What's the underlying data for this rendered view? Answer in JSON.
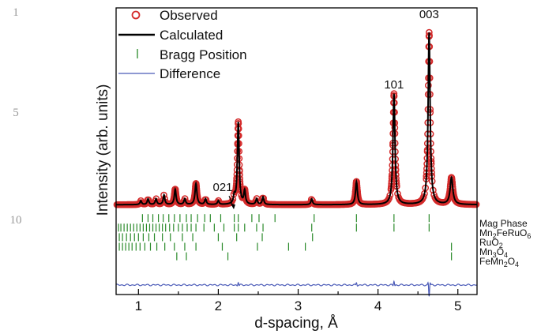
{
  "line_numbers": [
    {
      "label": "1"
    },
    {
      "label": "5"
    },
    {
      "label": "10"
    }
  ],
  "colors": {
    "observed": "#d42a2a",
    "calculated": "#000000",
    "bragg": "#2a8a2a",
    "difference": "#4b5bb8"
  },
  "chart_data": {
    "type": "line",
    "title": "",
    "xlabel": "d-spacing, Å",
    "ylabel": "Intensity (arb. units)",
    "xlim": [
      0.72,
      5.24
    ],
    "ylim": [
      -0.45,
      1.05
    ],
    "x_ticks": [
      {
        "value": 1,
        "label": "1"
      },
      {
        "value": 2,
        "label": "2"
      },
      {
        "value": 3,
        "label": "3"
      },
      {
        "value": 4,
        "label": "4"
      },
      {
        "value": 5,
        "label": "5"
      }
    ],
    "background": 0.02,
    "peaks": [
      {
        "x": 1.03,
        "h": 0.02,
        "w": 0.012
      },
      {
        "x": 1.12,
        "h": 0.03,
        "w": 0.012
      },
      {
        "x": 1.22,
        "h": 0.03,
        "w": 0.012
      },
      {
        "x": 1.32,
        "h": 0.05,
        "w": 0.012
      },
      {
        "x": 1.46,
        "h": 0.08,
        "w": 0.013
      },
      {
        "x": 1.58,
        "h": 0.03,
        "w": 0.012
      },
      {
        "x": 1.72,
        "h": 0.11,
        "w": 0.014
      },
      {
        "x": 1.84,
        "h": 0.03,
        "w": 0.012
      },
      {
        "x": 2.0,
        "h": 0.02,
        "w": 0.012
      },
      {
        "x": 2.2,
        "h": 0.04,
        "w": 0.012
      },
      {
        "x": 2.25,
        "h": 0.43,
        "w": 0.013
      },
      {
        "x": 2.33,
        "h": 0.07,
        "w": 0.012
      },
      {
        "x": 2.48,
        "h": 0.03,
        "w": 0.012
      },
      {
        "x": 2.56,
        "h": 0.04,
        "w": 0.012
      },
      {
        "x": 3.17,
        "h": 0.03,
        "w": 0.012
      },
      {
        "x": 3.73,
        "h": 0.12,
        "w": 0.014
      },
      {
        "x": 4.2,
        "h": 0.58,
        "w": 0.015
      },
      {
        "x": 4.64,
        "h": 0.9,
        "w": 0.015
      },
      {
        "x": 4.92,
        "h": 0.14,
        "w": 0.02
      }
    ],
    "series": [
      {
        "name": "Observed",
        "style": "circle",
        "color": "#d42a2a"
      },
      {
        "name": "Calculated",
        "style": "line",
        "color": "#000000"
      },
      {
        "name": "Bragg Position",
        "style": "tick",
        "color": "#2a8a2a"
      },
      {
        "name": "Difference",
        "style": "line",
        "color": "#4b5bb8"
      }
    ],
    "legend": "top-left",
    "grid": false,
    "phases": [
      {
        "label": "Mag Phase",
        "positions": [
          1.05,
          1.12,
          1.18,
          1.25,
          1.31,
          1.38,
          1.45,
          1.52,
          1.6,
          1.66,
          1.74,
          1.83,
          1.9,
          2.03,
          2.2,
          2.25,
          2.42,
          2.51,
          2.71,
          3.2,
          3.73,
          4.2,
          4.64
        ]
      },
      {
        "label": "Mn2FeRuO6",
        "label_main": "Mn",
        "label_parts": [
          {
            "t": "Mn",
            "sub": false
          },
          {
            "t": "2",
            "sub": true
          },
          {
            "t": "FeRuO",
            "sub": false
          },
          {
            "t": "6",
            "sub": true
          }
        ],
        "positions": [
          0.75,
          0.78,
          0.82,
          0.86,
          0.9,
          0.94,
          0.98,
          1.02,
          1.06,
          1.1,
          1.14,
          1.18,
          1.22,
          1.26,
          1.3,
          1.34,
          1.39,
          1.44,
          1.5,
          1.55,
          1.61,
          1.66,
          1.72,
          1.82,
          1.95,
          2.07,
          2.2,
          2.25,
          2.33,
          2.48,
          2.56,
          3.17,
          3.73,
          4.2,
          4.64
        ]
      },
      {
        "label": "RuO2",
        "label_parts": [
          {
            "t": "RuO",
            "sub": false
          },
          {
            "t": "2",
            "sub": true
          }
        ],
        "positions": [
          0.76,
          0.8,
          0.85,
          0.9,
          0.95,
          1.0,
          1.06,
          1.13,
          1.2,
          1.3,
          1.4,
          1.55,
          1.68,
          2.0,
          2.23,
          2.55,
          3.18
        ]
      },
      {
        "label": "Mn3O4",
        "label_parts": [
          {
            "t": "Mn",
            "sub": false
          },
          {
            "t": "3",
            "sub": true
          },
          {
            "t": "O",
            "sub": false
          },
          {
            "t": "4",
            "sub": true
          }
        ],
        "positions": [
          0.76,
          0.8,
          0.84,
          0.88,
          0.92,
          0.97,
          1.02,
          1.08,
          1.15,
          1.23,
          1.33,
          1.45,
          1.58,
          1.72,
          2.05,
          2.49,
          2.88,
          3.09,
          4.92
        ]
      },
      {
        "label": "FeMn2O4",
        "label_parts": [
          {
            "t": "FeMn",
            "sub": false
          },
          {
            "t": "2",
            "sub": true
          },
          {
            "t": "O",
            "sub": false
          },
          {
            "t": "4",
            "sub": true
          }
        ],
        "positions": [
          1.48,
          1.6,
          2.12,
          4.92
        ]
      }
    ],
    "difference_offset": -0.4,
    "difference_spikes": [
      {
        "x": 2.25,
        "amp": 0.015
      },
      {
        "x": 3.73,
        "amp": 0.012
      },
      {
        "x": 4.2,
        "amp": 0.02
      },
      {
        "x": 4.64,
        "amp": -0.06
      }
    ],
    "annotations": [
      {
        "label": "003",
        "x": 4.64
      },
      {
        "label": "101",
        "x": 4.2
      },
      {
        "label": "021",
        "x": 2.25
      }
    ]
  }
}
